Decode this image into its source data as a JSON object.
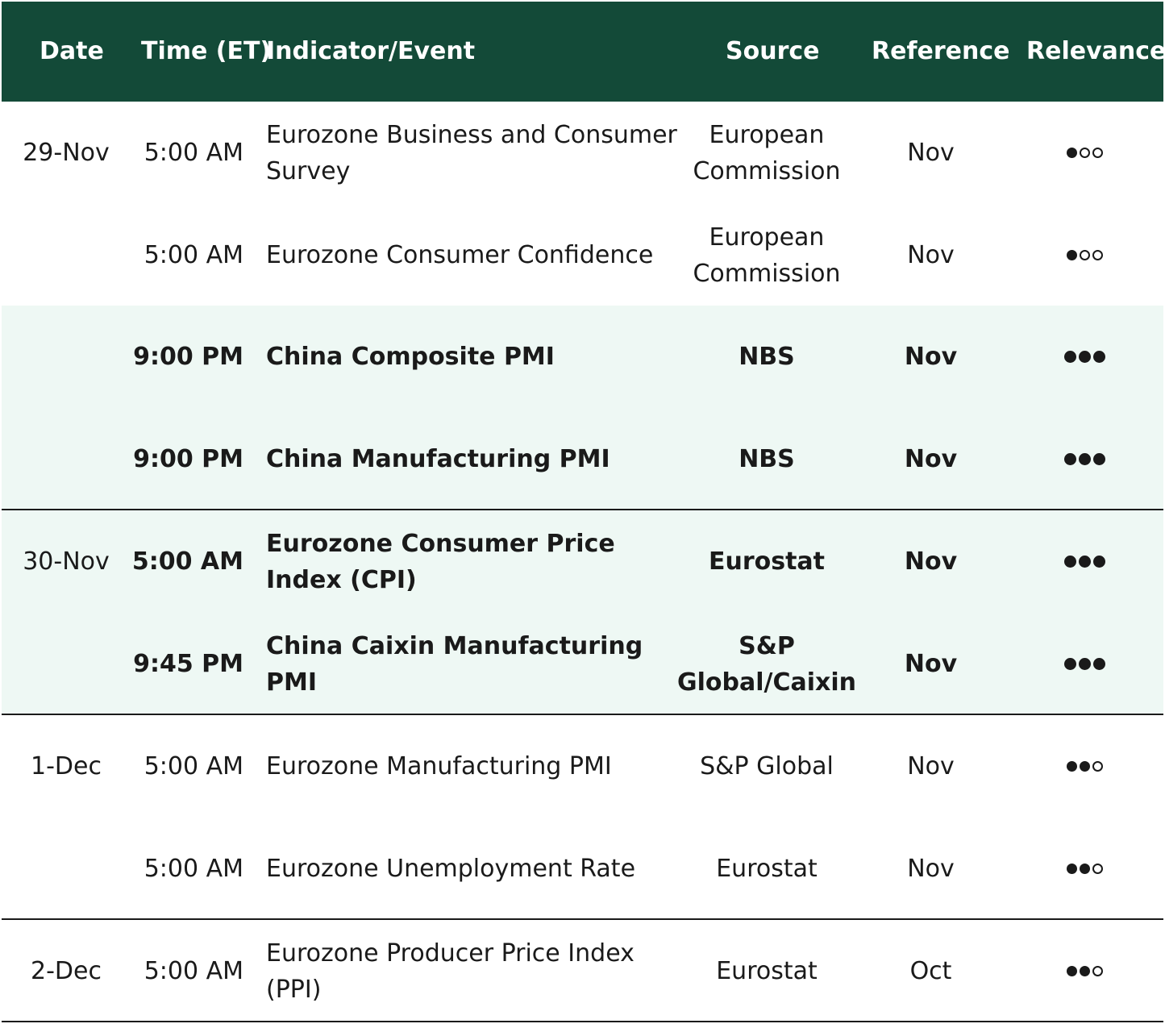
{
  "header": {
    "date": "Date",
    "time": "Time (ET)",
    "indicator": "Indicator/Event",
    "source": "Source",
    "reference": "Reference",
    "relevance": "Relevance"
  },
  "rows": [
    {
      "date": "29-Nov",
      "time": "5:00 AM",
      "indicator": "Eurozone Business and Consumer Survey",
      "source": "European Commission",
      "reference": "Nov",
      "relevance": 1
    },
    {
      "date": "",
      "time": "5:00 AM",
      "indicator": "Eurozone Consumer Confidence",
      "source": "European Commission",
      "reference": "Nov",
      "relevance": 1
    },
    {
      "date": "",
      "time": "9:00 PM",
      "indicator": "China Composite PMI",
      "source": "NBS",
      "reference": "Nov",
      "relevance": 3
    },
    {
      "date": "",
      "time": "9:00 PM",
      "indicator": "China Manufacturing PMI",
      "source": "NBS",
      "reference": "Nov",
      "relevance": 3
    },
    {
      "date": "30-Nov",
      "time": "5:00 AM",
      "indicator": "Eurozone Consumer Price Index (CPI)",
      "source": "Eurostat",
      "reference": "Nov",
      "relevance": 3
    },
    {
      "date": "",
      "time": "9:45 PM",
      "indicator": "China Caixin Manufacturing PMI",
      "source": "S&P Global/Caixin",
      "reference": "Nov",
      "relevance": 3
    },
    {
      "date": "1-Dec",
      "time": "5:00 AM",
      "indicator": "Eurozone Manufacturing PMI",
      "source": "S&P Global",
      "reference": "Nov",
      "relevance": 2
    },
    {
      "date": "",
      "time": "5:00 AM",
      "indicator": "Eurozone Unemployment Rate",
      "source": "Eurostat",
      "reference": "Nov",
      "relevance": 2
    },
    {
      "date": "2-Dec",
      "time": "5:00 AM",
      "indicator": "Eurozone Producer Price Index (PPI)",
      "source": "Eurostat",
      "reference": "Oct",
      "relevance": 2
    }
  ],
  "relevance_max": 3,
  "colors": {
    "header_bg": "#134a38",
    "highlight_bg": "#eef8f4"
  }
}
